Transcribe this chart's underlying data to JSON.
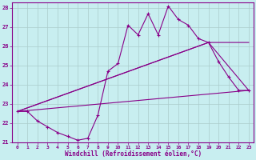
{
  "xlabel": "Windchill (Refroidissement éolien,°C)",
  "xlim": [
    -0.5,
    23.5
  ],
  "ylim": [
    21,
    28.3
  ],
  "yticks": [
    21,
    22,
    23,
    24,
    25,
    26,
    27,
    28
  ],
  "xticks": [
    0,
    1,
    2,
    3,
    4,
    5,
    6,
    7,
    8,
    9,
    10,
    11,
    12,
    13,
    14,
    15,
    16,
    17,
    18,
    19,
    20,
    21,
    22,
    23
  ],
  "line_color": "#880088",
  "bg_color": "#c8eef0",
  "grid_color": "#aacccc",
  "line1_x": [
    0,
    1,
    2,
    3,
    4,
    5,
    6,
    7,
    8,
    9,
    10,
    11,
    12,
    13,
    14,
    15,
    16,
    17,
    18,
    19,
    20,
    21,
    22,
    23
  ],
  "line1_y": [
    22.6,
    22.6,
    22.1,
    21.8,
    21.5,
    21.3,
    21.1,
    21.2,
    22.4,
    24.7,
    25.1,
    27.1,
    26.6,
    27.7,
    26.6,
    28.1,
    27.4,
    27.1,
    26.4,
    26.2,
    25.2,
    24.4,
    23.7,
    23.7
  ],
  "line2_x": [
    0,
    23
  ],
  "line2_y": [
    22.6,
    23.7
  ],
  "line3_x": [
    0,
    19,
    23
  ],
  "line3_y": [
    22.6,
    26.2,
    23.7
  ],
  "line4_x": [
    0,
    19,
    23
  ],
  "line4_y": [
    22.6,
    26.2,
    26.2
  ]
}
